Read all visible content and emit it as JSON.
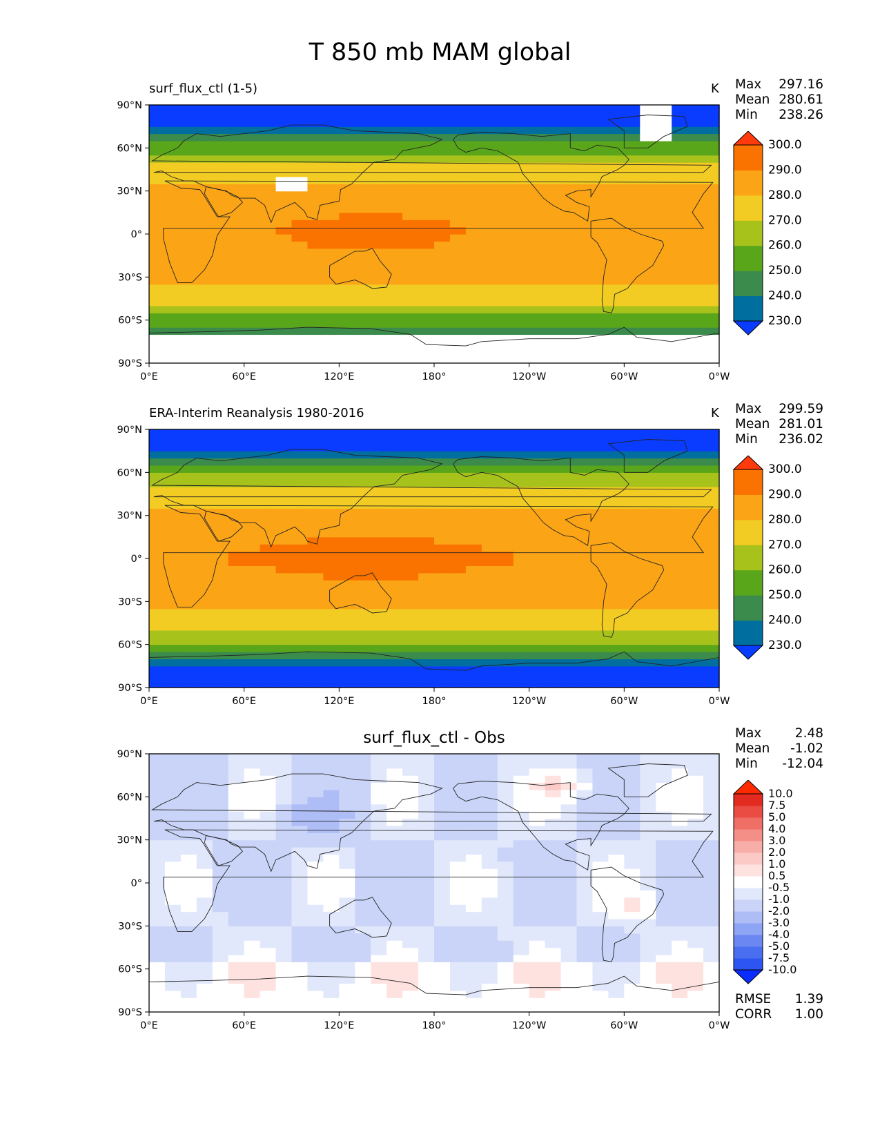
{
  "title": "T 850 mb MAM global",
  "chart_data": [
    {
      "type": "heatmap",
      "name": "model",
      "title_left": "surf_flux_ctl (1-5)",
      "units": "K",
      "stats": {
        "max_label": "Max",
        "max": "297.16",
        "mean_label": "Mean",
        "mean": "280.61",
        "min_label": "Min",
        "min": "238.26"
      },
      "xlim": [
        0,
        360
      ],
      "ylim": [
        -90,
        90
      ],
      "xticks": [
        "0°E",
        "60°E",
        "120°E",
        "180°",
        "120°W",
        "60°W",
        "0°W"
      ],
      "yticks": [
        "90°N",
        "60°N",
        "30°N",
        "0°",
        "30°S",
        "60°S",
        "90°S"
      ],
      "levels": [
        "230.0",
        "240.0",
        "250.0",
        "260.0",
        "270.0",
        "280.0",
        "290.0",
        "300.0"
      ],
      "colors": [
        "#0a3cff",
        "#006e9e",
        "#3b8c4c",
        "#5aa61a",
        "#a8c21c",
        "#f2cc22",
        "#fba416",
        "#fa7300",
        "#ff3a0c"
      ],
      "missing_color": "#ffffff"
    },
    {
      "type": "heatmap",
      "name": "obs",
      "title_left": "ERA-Interim Reanalysis 1980-2016",
      "units": "K",
      "stats": {
        "max_label": "Max",
        "max": "299.59",
        "mean_label": "Mean",
        "mean": "281.01",
        "min_label": "Min",
        "min": "236.02"
      },
      "xlim": [
        0,
        360
      ],
      "ylim": [
        -90,
        90
      ],
      "xticks": [
        "0°E",
        "60°E",
        "120°E",
        "180°",
        "120°W",
        "60°W",
        "0°W"
      ],
      "yticks": [
        "90°N",
        "60°N",
        "30°N",
        "0°",
        "30°S",
        "60°S",
        "90°S"
      ],
      "levels": [
        "230.0",
        "240.0",
        "250.0",
        "260.0",
        "270.0",
        "280.0",
        "290.0",
        "300.0"
      ],
      "colors": [
        "#0a3cff",
        "#006e9e",
        "#3b8c4c",
        "#5aa61a",
        "#a8c21c",
        "#f2cc22",
        "#fba416",
        "#fa7300",
        "#ff3a0c"
      ]
    },
    {
      "type": "heatmap",
      "name": "diff",
      "title": "surf_flux_ctl - Obs",
      "stats": {
        "max_label": "Max",
        "max": "2.48",
        "mean_label": "Mean",
        "mean": "-1.02",
        "min_label": "Min",
        "min": "-12.04"
      },
      "metrics": {
        "rmse_label": "RMSE",
        "rmse": "1.39",
        "corr_label": "CORR",
        "corr": "1.00"
      },
      "xlim": [
        0,
        360
      ],
      "ylim": [
        -90,
        90
      ],
      "xticks": [
        "0°E",
        "60°E",
        "120°E",
        "180°",
        "120°W",
        "60°W",
        "0°W"
      ],
      "yticks": [
        "90°N",
        "60°N",
        "30°N",
        "0°",
        "30°S",
        "60°S",
        "90°S"
      ],
      "levels": [
        "-10.0",
        "-7.5",
        "-5.0",
        "-4.0",
        "-3.0",
        "-2.0",
        "-1.0",
        "-0.5",
        "0.5",
        "1.0",
        "2.0",
        "3.0",
        "4.0",
        "5.0",
        "7.5",
        "10.0"
      ],
      "colors": [
        "#0a2cff",
        "#2d55f2",
        "#4a6ef0",
        "#6b88f2",
        "#8ea4f4",
        "#aebdf6",
        "#c9d4f8",
        "#e2e8fb",
        "#ffffff",
        "#fde2e0",
        "#fbcac6",
        "#f8aea8",
        "#f48f88",
        "#ef6e66",
        "#ea4b42",
        "#e32a20",
        "#ff2a00"
      ]
    }
  ]
}
